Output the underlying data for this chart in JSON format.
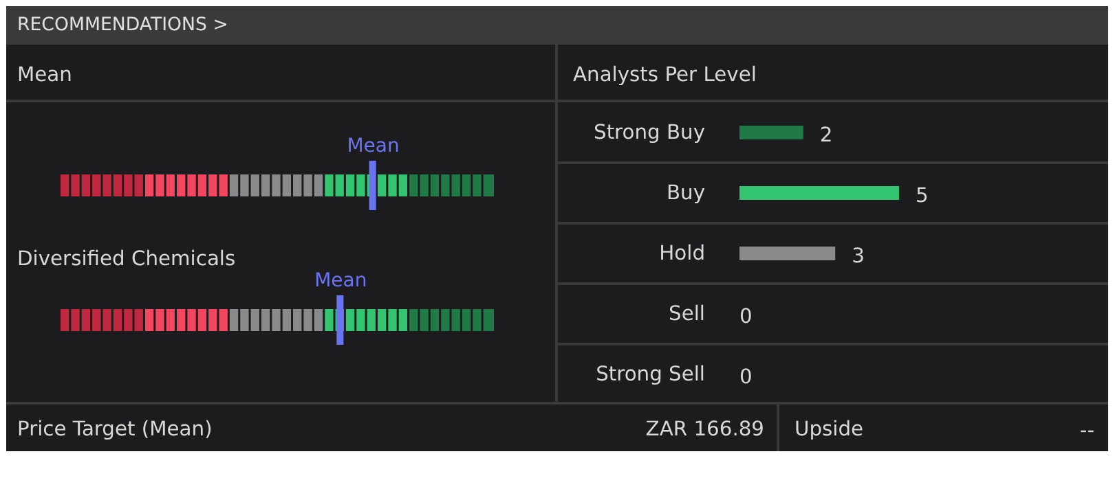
{
  "chart_data": {
    "type": "bar",
    "orientation": "horizontal",
    "title": "Analysts Per Level",
    "categories": [
      "Strong Buy",
      "Buy",
      "Hold",
      "Sell",
      "Strong Sell"
    ],
    "values": [
      2,
      5,
      3,
      0,
      0
    ],
    "colors": [
      "#1f7a45",
      "#33c46f",
      "#8a8a8d",
      "#8a8a8d",
      "#8a8a8d"
    ],
    "data_labels": true,
    "annotations": [
      "RECOMMENDATIONS >",
      "Mean",
      "Diversified Chemicals",
      "Mean",
      "Mean",
      "Price Target (Mean)",
      "ZAR 166.89",
      "Upside",
      "--"
    ]
  }
}
